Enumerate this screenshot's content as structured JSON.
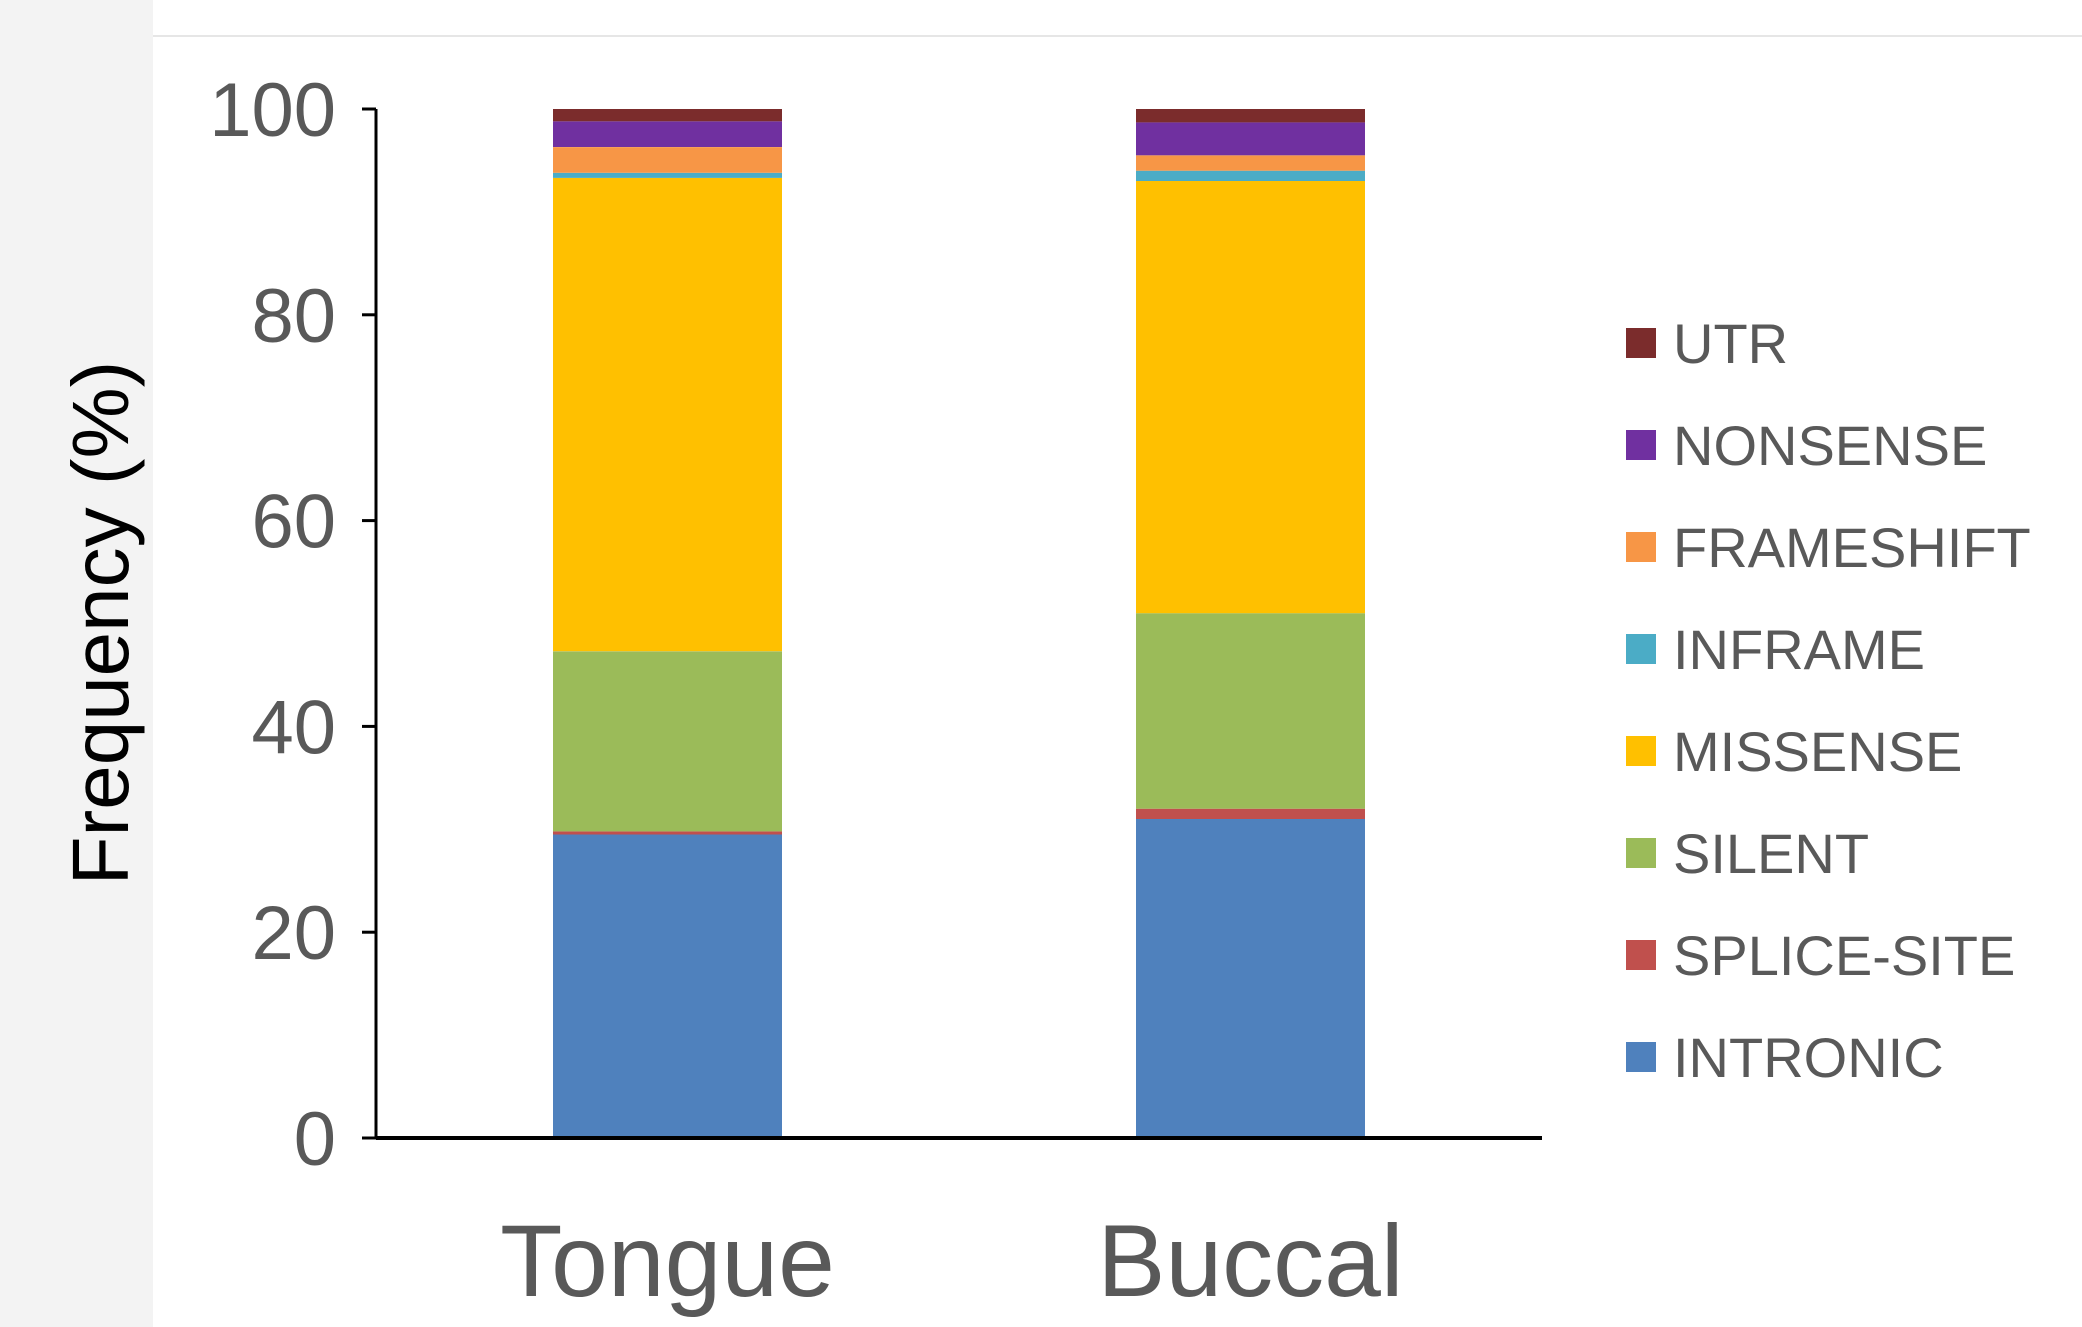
{
  "chart_data": {
    "type": "bar",
    "stacked": true,
    "title": "",
    "xlabel": "",
    "ylabel": "Frequency (%)",
    "ylim": [
      0,
      100
    ],
    "yticks": [
      0,
      20,
      40,
      60,
      80,
      100
    ],
    "grid": false,
    "legend_position": "right",
    "categories": [
      "Tongue",
      "Buccal"
    ],
    "series": [
      {
        "name": "INTRONIC",
        "color": "#4F81BD",
        "values": [
          29.5,
          31.0
        ]
      },
      {
        "name": "SPLICE-SITE",
        "color": "#C0504D",
        "values": [
          0.3,
          1.0
        ]
      },
      {
        "name": "SILENT",
        "color": "#9BBB59",
        "values": [
          17.5,
          19.0
        ]
      },
      {
        "name": "MISSENSE",
        "color": "#FFC000",
        "values": [
          46.0,
          42.0
        ]
      },
      {
        "name": "INFRAME",
        "color": "#4BACC6",
        "values": [
          0.5,
          1.0
        ]
      },
      {
        "name": "FRAMESHIFT",
        "color": "#F79646",
        "values": [
          2.5,
          1.5
        ]
      },
      {
        "name": "NONSENSE",
        "color": "#7030A0",
        "values": [
          2.5,
          3.2
        ]
      },
      {
        "name": "UTR",
        "color": "#7B2C2C",
        "values": [
          1.2,
          1.3
        ]
      }
    ]
  }
}
